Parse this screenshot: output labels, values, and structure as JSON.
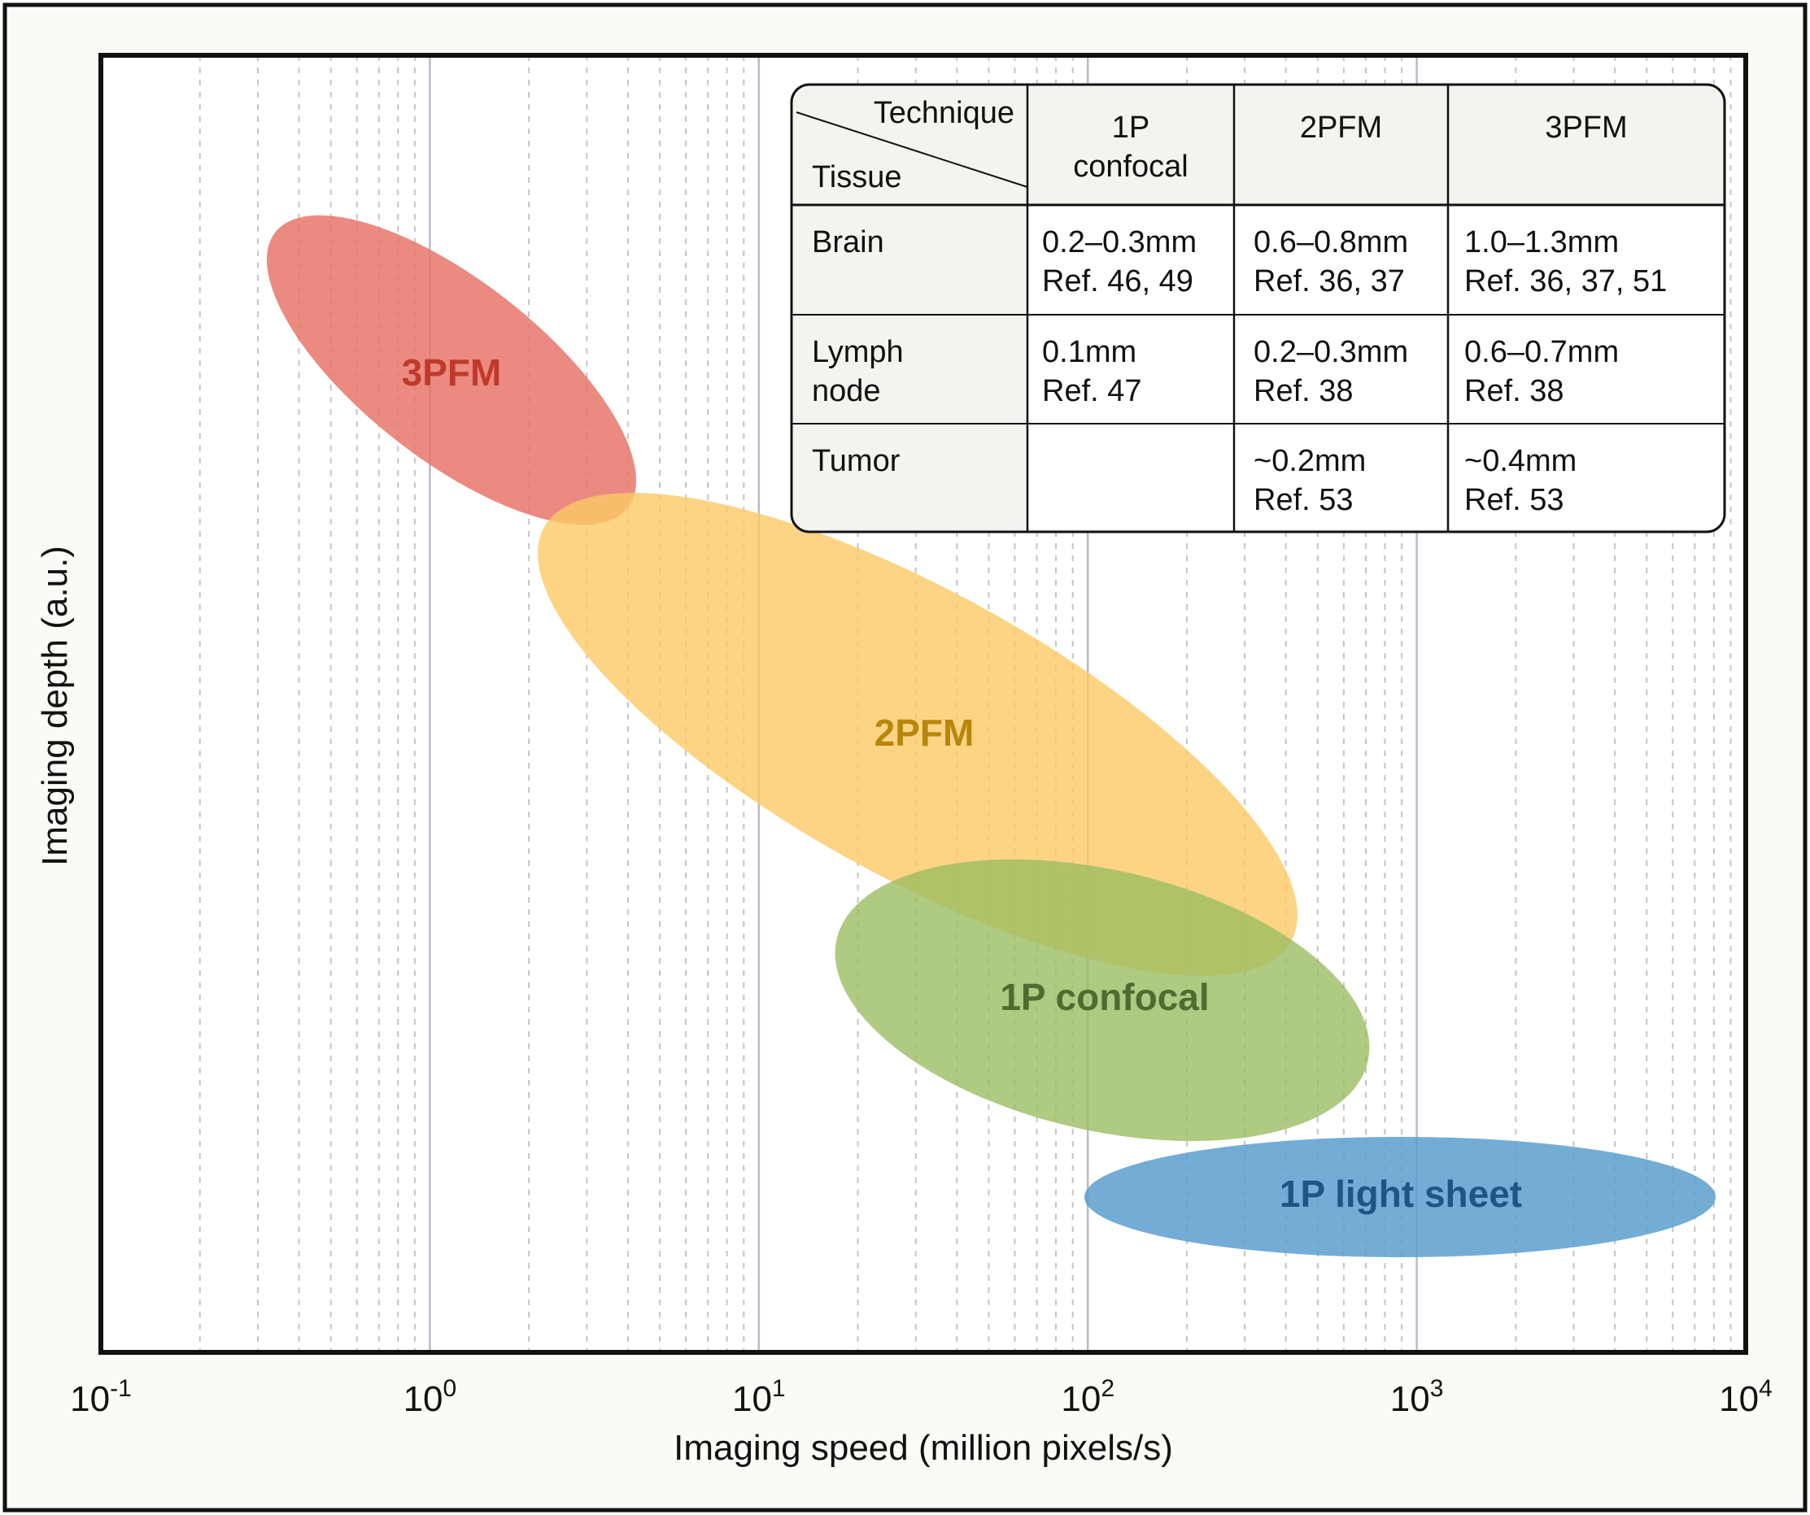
{
  "chart_data": {
    "type": "scatter",
    "xlabel": "Imaging speed (million pixels/s)",
    "ylabel": "Imaging depth (a.u.)",
    "x_scale": "log",
    "xlim": [
      0.1,
      10000
    ],
    "x_ticks": [
      {
        "value": 0.1,
        "base": "10",
        "exp": "-1"
      },
      {
        "value": 1,
        "base": "10",
        "exp": "0"
      },
      {
        "value": 10,
        "base": "10",
        "exp": "1"
      },
      {
        "value": 100,
        "base": "10",
        "exp": "2"
      },
      {
        "value": 1000,
        "base": "10",
        "exp": "3"
      },
      {
        "value": 10000,
        "base": "10",
        "exp": "4"
      }
    ],
    "grid": "vertical (major solid, minor dashed)",
    "regions": [
      {
        "label": "3PFM",
        "x_range": [
          0.32,
          4.8
        ],
        "color": "#e8756b",
        "label_color": "#c03a2b"
      },
      {
        "label": "2PFM",
        "x_range": [
          2.1,
          500
        ],
        "color": "#fbc965",
        "label_color": "#b8860b"
      },
      {
        "label": "1P confocal",
        "x_range": [
          18,
          760
        ],
        "color": "#9bbd62",
        "label_color": "#4f6b32"
      },
      {
        "label": "1P light sheet",
        "x_range": [
          100,
          8000
        ],
        "color": "#5a9fcf",
        "label_color": "#1f5585"
      }
    ],
    "table": {
      "corner_col": "Technique",
      "corner_row": "Tissue",
      "columns": [
        [
          "1P",
          "confocal"
        ],
        [
          "2PFM"
        ],
        [
          "3PFM"
        ]
      ],
      "rows": [
        {
          "tissue": [
            "Brain"
          ],
          "cells": [
            [
              "0.2–0.3mm",
              "Ref. 46, 49"
            ],
            [
              "0.6–0.8mm",
              "Ref. 36, 37"
            ],
            [
              "1.0–1.3mm",
              "Ref. 36, 37, 51"
            ]
          ]
        },
        {
          "tissue": [
            "Lymph",
            "node"
          ],
          "cells": [
            [
              "0.1mm",
              "Ref. 47"
            ],
            [
              "0.2–0.3mm",
              "Ref. 38"
            ],
            [
              "0.6–0.7mm",
              "Ref. 38"
            ]
          ]
        },
        {
          "tissue": [
            "Tumor"
          ],
          "cells": [
            [],
            [
              "~0.2mm",
              "Ref. 53"
            ],
            [
              "~0.4mm",
              "Ref. 53"
            ]
          ]
        }
      ]
    }
  }
}
